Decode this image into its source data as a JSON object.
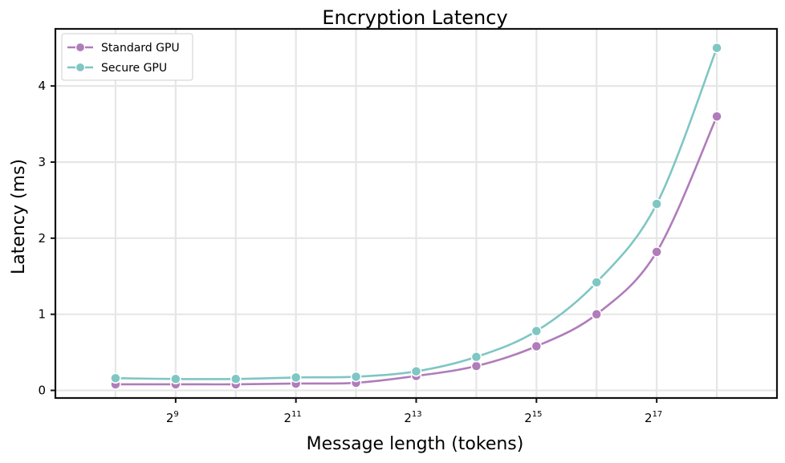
{
  "chart_data": {
    "type": "line",
    "title": "Encryption Latency",
    "xlabel": "Message length (tokens)",
    "ylabel": "Latency (ms)",
    "x_scale": "log2",
    "x": [
      256,
      512,
      1024,
      2048,
      4096,
      8192,
      16384,
      32768,
      65536,
      131072,
      262144
    ],
    "x_ticks": [
      {
        "value": 512,
        "base": "2",
        "exp": "9"
      },
      {
        "value": 2048,
        "base": "2",
        "exp": "11"
      },
      {
        "value": 8192,
        "base": "2",
        "exp": "13"
      },
      {
        "value": 32768,
        "base": "2",
        "exp": "15"
      },
      {
        "value": 131072,
        "base": "2",
        "exp": "17"
      }
    ],
    "y_ticks": [
      0,
      1,
      2,
      3,
      4
    ],
    "xlim": [
      128,
      524288
    ],
    "ylim": [
      -0.1,
      4.75
    ],
    "grid": true,
    "legend_position": "top-left",
    "series": [
      {
        "name": "Standard GPU",
        "color": "#b07cba",
        "values": [
          0.08,
          0.08,
          0.08,
          0.09,
          0.1,
          0.19,
          0.32,
          0.58,
          1.0,
          1.82,
          3.6
        ]
      },
      {
        "name": "Secure GPU",
        "color": "#7fc6c4",
        "values": [
          0.16,
          0.15,
          0.15,
          0.17,
          0.18,
          0.25,
          0.44,
          0.78,
          1.42,
          2.45,
          4.5
        ]
      }
    ]
  }
}
